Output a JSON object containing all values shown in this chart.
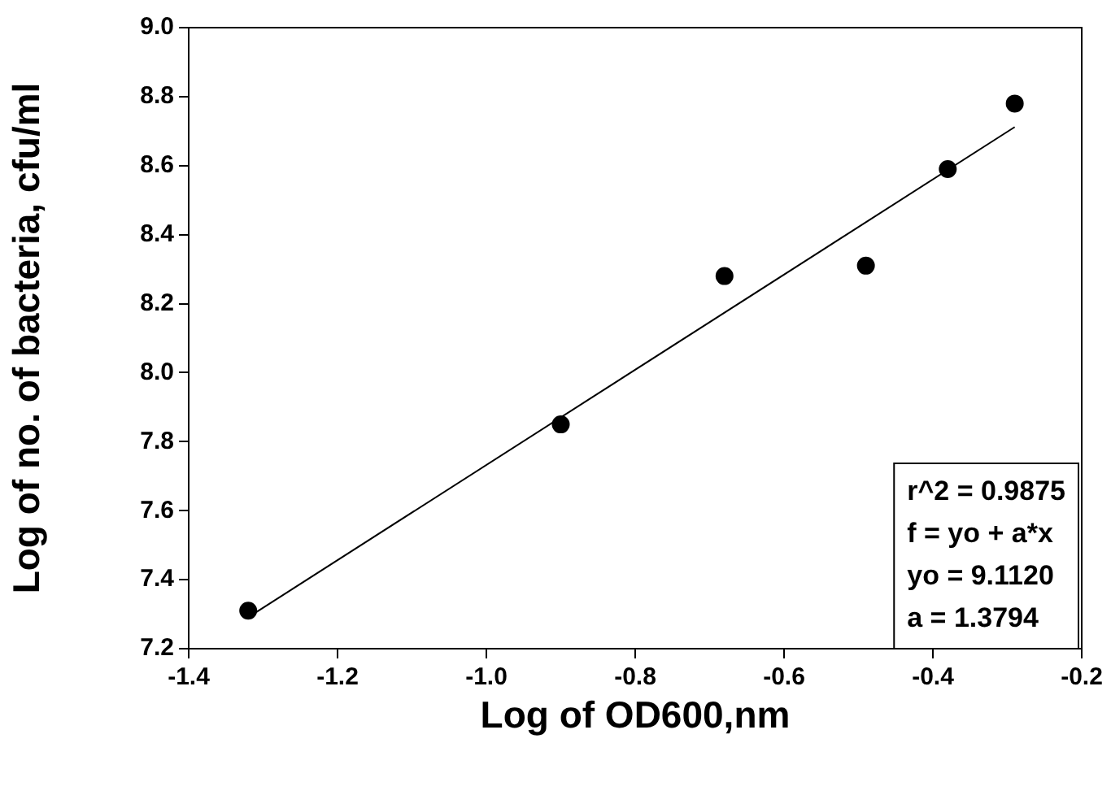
{
  "chart_data": {
    "type": "scatter",
    "xlabel": "Log of OD600,nm",
    "ylabel": "Log of no. of bacteria, cfu/ml",
    "annotations": [
      "r^2 = 0.9875",
      "f = yo + a*x",
      "yo = 9.1120",
      "a = 1.3794"
    ],
    "xlim": [
      -1.4,
      -0.2
    ],
    "xticks": [
      {
        "value": -1.4,
        "label": "-1.4"
      },
      {
        "value": -1.2,
        "label": "-1.2"
      },
      {
        "value": -1.0,
        "label": "-1.0"
      },
      {
        "value": -0.8,
        "label": "-0.8"
      },
      {
        "value": -0.6,
        "label": "-0.6"
      },
      {
        "value": -0.4,
        "label": "-0.4"
      },
      {
        "value": -0.2,
        "label": "-0.2"
      }
    ],
    "ylim": [
      7.2,
      9.0
    ],
    "yticks": [
      {
        "value": 7.2,
        "label": "7.2"
      },
      {
        "value": 7.4,
        "label": "7.4"
      },
      {
        "value": 7.6,
        "label": "7.6"
      },
      {
        "value": 7.8,
        "label": "7.8"
      },
      {
        "value": 8.0,
        "label": "8.0"
      },
      {
        "value": 8.2,
        "label": "8.2"
      },
      {
        "value": 8.4,
        "label": "8.4"
      },
      {
        "value": 8.6,
        "label": "8.6"
      },
      {
        "value": 8.8,
        "label": "8.8"
      },
      {
        "value": 9.0,
        "label": "9.0"
      }
    ],
    "series": [
      {
        "color": "#000000",
        "marker": "circle",
        "x": [
          -1.32,
          -0.9,
          -0.68,
          -0.49,
          -0.38,
          -0.29
        ],
        "values": [
          7.31,
          7.85,
          8.28,
          8.31,
          8.59,
          8.78
        ]
      },
      {
        "type": "line",
        "color": "#000000",
        "marker": "none",
        "x": [
          -1.32,
          -0.29
        ],
        "values": [
          7.291,
          8.712
        ]
      }
    ]
  }
}
